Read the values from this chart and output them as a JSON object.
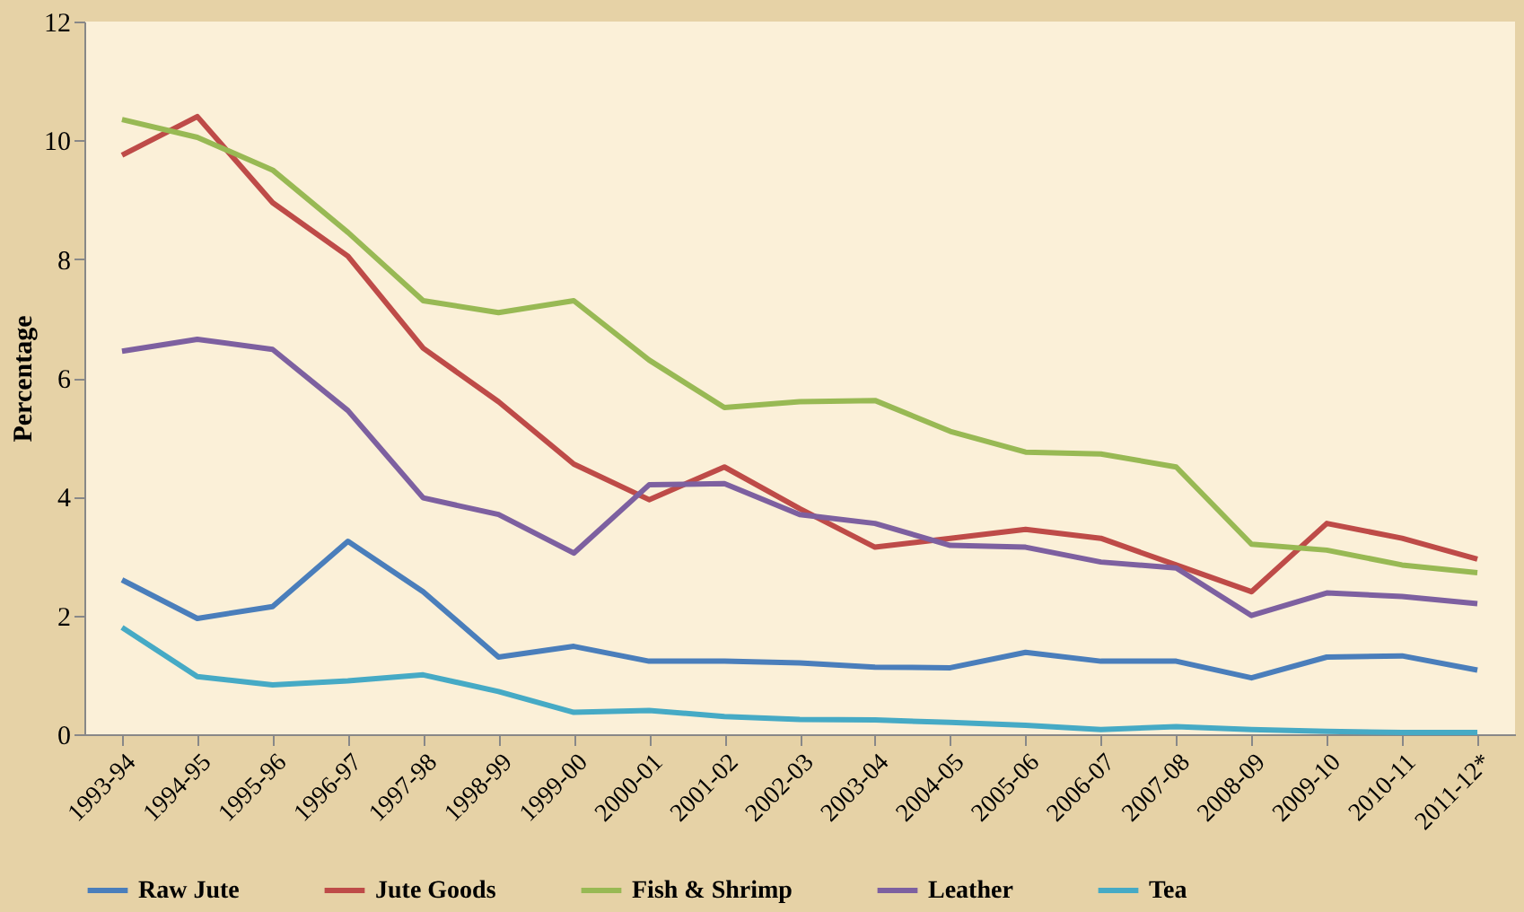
{
  "chart_data": {
    "type": "line",
    "ylabel": "Percentage",
    "categories": [
      "1993-94",
      "1994-95",
      "1995-96",
      "1996-97",
      "1997-98",
      "1998-99",
      "1999-00",
      "2000-01",
      "2001-02",
      "2002-03",
      "2003-04",
      "2004-05",
      "2005-06",
      "2006-07",
      "2007-08",
      "2008-09",
      "2009-10",
      "2010-11",
      "2011-12*"
    ],
    "series": [
      {
        "name": "Raw Jute",
        "color": "#4a7ebb",
        "values": [
          2.6,
          1.95,
          2.15,
          3.25,
          2.4,
          1.3,
          1.48,
          1.23,
          1.23,
          1.2,
          1.13,
          1.12,
          1.38,
          1.23,
          1.23,
          0.95,
          1.3,
          1.32,
          1.08
        ]
      },
      {
        "name": "Jute Goods",
        "color": "#be4b48",
        "values": [
          9.75,
          10.4,
          8.95,
          8.05,
          6.5,
          5.6,
          4.55,
          3.95,
          4.5,
          3.8,
          3.15,
          3.3,
          3.45,
          3.3,
          2.85,
          2.4,
          3.55,
          3.3,
          2.95
        ]
      },
      {
        "name": "Fish & Shrimp",
        "color": "#98b954",
        "values": [
          10.35,
          10.05,
          9.5,
          8.45,
          7.3,
          7.1,
          7.3,
          6.3,
          5.5,
          5.6,
          5.62,
          5.1,
          4.75,
          4.72,
          4.5,
          3.2,
          3.1,
          2.85,
          2.72
        ]
      },
      {
        "name": "Leather",
        "color": "#7d60a0",
        "values": [
          6.45,
          6.65,
          6.48,
          5.45,
          3.98,
          3.7,
          3.05,
          4.2,
          4.22,
          3.7,
          3.55,
          3.18,
          3.15,
          2.9,
          2.8,
          2.0,
          2.38,
          2.32,
          2.2
        ]
      },
      {
        "name": "Tea",
        "color": "#46aac5",
        "values": [
          1.8,
          0.97,
          0.83,
          0.9,
          1.0,
          0.72,
          0.37,
          0.4,
          0.3,
          0.25,
          0.24,
          0.2,
          0.15,
          0.08,
          0.13,
          0.08,
          0.05,
          0.03,
          0.03
        ]
      }
    ],
    "ylim": [
      0,
      12
    ],
    "yticks": [
      0,
      2,
      4,
      6,
      8,
      10,
      12
    ],
    "grid": false,
    "legend": "bottom",
    "marker": "none",
    "line_style": "solid"
  }
}
